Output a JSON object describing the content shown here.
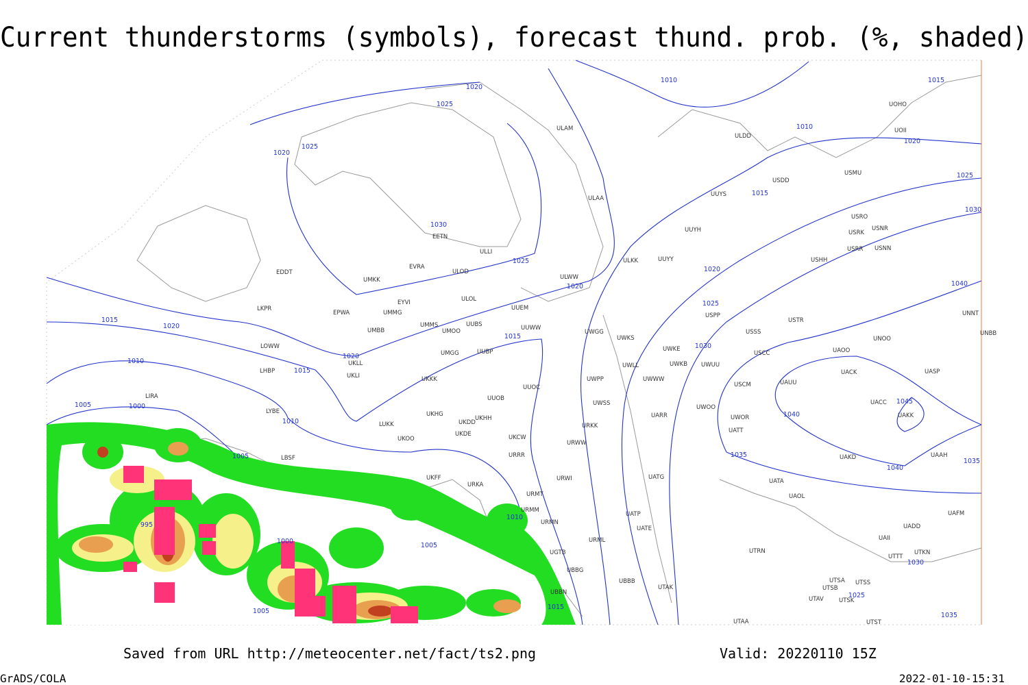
{
  "header": {
    "title": "Current thunderstorms (symbols), forecast thund. prob. (%, shaded)"
  },
  "footer": {
    "saved": "Saved from URL http://meteocenter.net/fact/ts2.png",
    "valid": "Valid: 20220110 15Z",
    "software": "GrADS/COLA",
    "timestamp": "2022-01-10-15:31"
  },
  "isobar_labels": [
    "1020",
    "1025",
    "1010",
    "1015",
    "1020",
    "1025",
    "1010",
    "1020",
    "1025",
    "1015",
    "1030",
    "1030",
    "1025",
    "1020",
    "1020",
    "1040",
    "1025",
    "1015",
    "1020",
    "1015",
    "1030",
    "1020",
    "1010",
    "1015",
    "1005",
    "1000",
    "1045",
    "1010",
    "1040",
    "1035",
    "1005",
    "1040",
    "1035",
    "1010",
    "995",
    "1000",
    "1005",
    "1030",
    "1005",
    "1015",
    "1025",
    "1035"
  ],
  "stations": [
    "ULAM",
    "ULDD",
    "UOII",
    "UOHO",
    "USDD",
    "USMU",
    "ULAA",
    "UUYS",
    "USRO",
    "USRK",
    "USNR",
    "UUYH",
    "USRR",
    "USNN",
    "ULKK",
    "UUYY",
    "USHH",
    "EETN",
    "ULLI",
    "EVRA",
    "ULOD",
    "EDDT",
    "UMKK",
    "ULWW",
    "ULOL",
    "EYVI",
    "UUEM",
    "LKPR",
    "EPWA",
    "UMMG",
    "USPP",
    "USTR",
    "UNNT",
    "UMMS",
    "UMOO",
    "UUBS",
    "UUWW",
    "UWGG",
    "UWKS",
    "USSS",
    "UNOO",
    "UNBB",
    "UMBB",
    "LOWW",
    "UWKE",
    "UWKB",
    "UWUU",
    "USCC",
    "UAOO",
    "UMGG",
    "UUBP",
    "UKLL",
    "UKLI",
    "LHBP",
    "UWLL",
    "UWWW",
    "UACK",
    "UASP",
    "UKKK",
    "UWPP",
    "USCM",
    "UAUU",
    "UUOC",
    "LIRA",
    "UUOB",
    "UACC",
    "UWSS",
    "UWOO",
    "UWOR",
    "UAKK",
    "LYBE",
    "UKHG",
    "UKDD",
    "UKHH",
    "LUKK",
    "UARR",
    "URKK",
    "UATT",
    "UKOO",
    "UKDE",
    "UKCW",
    "URWW",
    "UAAH",
    "LBSF",
    "URRR",
    "UAKD",
    "UKFF",
    "URKA",
    "URWI",
    "UATG",
    "UATA",
    "URMT",
    "UAOL",
    "URMM",
    "UATP",
    "UAFM",
    "URMN",
    "UATE",
    "UADD",
    "URML",
    "UAII",
    "UGTB",
    "UTKN",
    "UTTT",
    "UTRN",
    "UBBG",
    "UBBB",
    "UTSA",
    "UTSS",
    "UTAK",
    "UTSB",
    "UBBN",
    "UTAV",
    "UTSK",
    "UTAA",
    "UTST"
  ]
}
